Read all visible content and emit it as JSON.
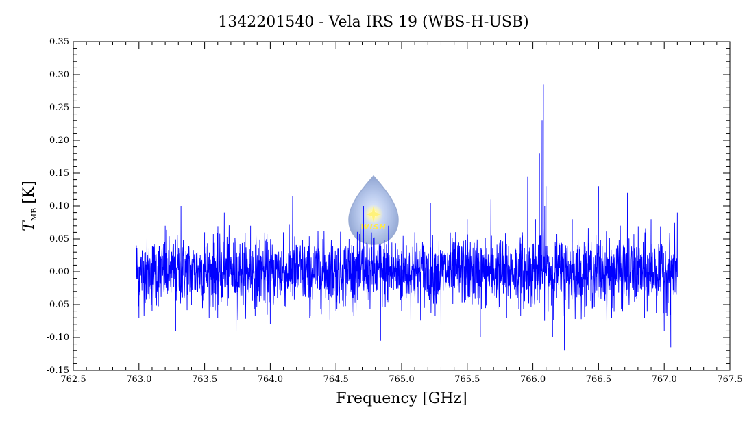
{
  "chart_data": {
    "type": "line",
    "title": "1342201540 - Vela IRS 19 (WBS-H-USB)",
    "xlabel": "Frequency [GHz]",
    "ylabel": {
      "main": "T",
      "sub": "MB",
      "unit": "[K]"
    },
    "xlim": [
      762.5,
      767.5
    ],
    "ylim": [
      -0.15,
      0.35
    ],
    "x_ticks": [
      "762.5",
      "763.0",
      "763.5",
      "764.0",
      "764.5",
      "765.0",
      "765.5",
      "766.0",
      "766.5",
      "767.0",
      "767.5"
    ],
    "y_ticks": [
      "-0.15",
      "-0.10",
      "-0.05",
      "0.00",
      "0.05",
      "0.10",
      "0.15",
      "0.20",
      "0.25",
      "0.30",
      "0.35"
    ],
    "grid": false,
    "legend": "none",
    "series": [
      {
        "color": "#0000ff",
        "x_range": [
          762.98,
          767.1
        ],
        "noise_rms_K": 0.03,
        "baseline_K": 0.0,
        "points": [
          [
            762.98,
            0.04
          ],
          [
            763.0,
            -0.07
          ],
          [
            763.05,
            0.03
          ],
          [
            763.1,
            -0.06
          ],
          [
            763.2,
            0.07
          ],
          [
            763.28,
            -0.09
          ],
          [
            763.32,
            0.1
          ],
          [
            763.4,
            -0.05
          ],
          [
            763.5,
            0.06
          ],
          [
            763.6,
            -0.07
          ],
          [
            763.65,
            0.09
          ],
          [
            763.74,
            -0.09
          ],
          [
            763.85,
            0.07
          ],
          [
            764.0,
            -0.08
          ],
          [
            764.1,
            0.06
          ],
          [
            764.17,
            0.115
          ],
          [
            764.3,
            -0.07
          ],
          [
            764.4,
            0.05
          ],
          [
            764.5,
            -0.06
          ],
          [
            764.6,
            0.05
          ],
          [
            764.71,
            0.1
          ],
          [
            764.84,
            -0.105
          ],
          [
            764.9,
            0.07
          ],
          [
            765.0,
            -0.06
          ],
          [
            765.1,
            0.06
          ],
          [
            765.22,
            0.105
          ],
          [
            765.3,
            -0.09
          ],
          [
            765.5,
            0.08
          ],
          [
            765.6,
            -0.1
          ],
          [
            765.68,
            0.11
          ],
          [
            765.8,
            -0.07
          ],
          [
            765.92,
            0.06
          ],
          [
            765.96,
            0.145
          ],
          [
            766.02,
            0.08
          ],
          [
            766.05,
            0.18
          ],
          [
            766.07,
            0.23
          ],
          [
            766.08,
            0.285
          ],
          [
            766.09,
            0.1
          ],
          [
            766.1,
            0.13
          ],
          [
            766.15,
            -0.1
          ],
          [
            766.24,
            -0.12
          ],
          [
            766.3,
            0.08
          ],
          [
            766.5,
            0.13
          ],
          [
            766.6,
            -0.07
          ],
          [
            766.72,
            0.12
          ],
          [
            766.85,
            -0.07
          ],
          [
            766.9,
            0.08
          ],
          [
            767.0,
            -0.09
          ],
          [
            767.05,
            -0.115
          ],
          [
            767.1,
            0.09
          ]
        ]
      }
    ]
  },
  "logo": {
    "text": "WISH"
  }
}
